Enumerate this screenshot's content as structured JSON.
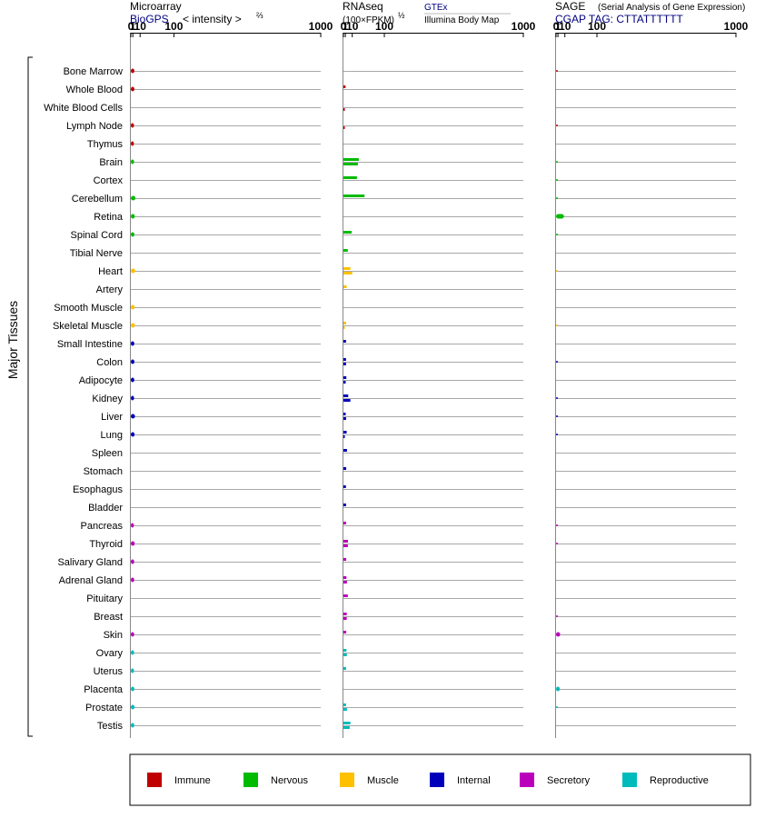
{
  "chart_data": {
    "type": "bar",
    "y_axis_title": "Major Tissues",
    "scale": {
      "ticks": [
        0,
        1,
        10,
        100,
        1000
      ],
      "tick_labels": [
        "0",
        "1",
        "10",
        "100",
        "1000"
      ],
      "exponent": "2/3",
      "range": [
        0,
        1000
      ]
    },
    "panels": [
      {
        "key": "microarray",
        "title": "Microarray",
        "source": "BioGPS",
        "measure": "< intensity >",
        "exponent_label": "⅔",
        "series": [
          {
            "key": "biogps",
            "name": "BioGPS"
          }
        ]
      },
      {
        "key": "rnaseq",
        "title": "RNAseq",
        "measure": "(100×FPKM)",
        "exponent_label": "½",
        "series": [
          {
            "key": "gtex",
            "name": "GTEx"
          },
          {
            "key": "illumina",
            "name": "Illumina Body Map"
          }
        ]
      },
      {
        "key": "sage",
        "title": "SAGE",
        "subtitle": "(Serial Analysis of Gene Expression)",
        "tag_label": "CGAP TAG: CTTATTTTTT",
        "series": [
          {
            "key": "sage",
            "name": "SAGE"
          }
        ]
      }
    ],
    "groups": [
      {
        "name": "Immune",
        "color": "#c00000"
      },
      {
        "name": "Nervous",
        "color": "#00bb00"
      },
      {
        "name": "Muscle",
        "color": "#ffc000"
      },
      {
        "name": "Internal",
        "color": "#0000bb"
      },
      {
        "name": "Secretory",
        "color": "#bb00bb"
      },
      {
        "name": "Reproductive",
        "color": "#00bbbb"
      }
    ],
    "tissues": [
      {
        "name": "Bone Marrow",
        "group": "Immune",
        "microarray": 2.4,
        "gtex": null,
        "illumina": null,
        "sage": 0.01
      },
      {
        "name": "Whole Blood",
        "group": "Immune",
        "microarray": 2.4,
        "gtex": 1.2,
        "illumina": null,
        "sage": null
      },
      {
        "name": "White Blood Cells",
        "group": "Immune",
        "microarray": null,
        "gtex": null,
        "illumina": 0.01,
        "sage": null
      },
      {
        "name": "Lymph Node",
        "group": "Immune",
        "microarray": 2.0,
        "gtex": null,
        "illumina": 0.01,
        "sage": 0.01
      },
      {
        "name": "Thymus",
        "group": "Immune",
        "microarray": 1.9,
        "gtex": null,
        "illumina": null,
        "sage": null
      },
      {
        "name": "Brain",
        "group": "Nervous",
        "microarray": 2.1,
        "gtex": 23,
        "illumina": 21,
        "sage": 0.01
      },
      {
        "name": "Cortex",
        "group": "Nervous",
        "microarray": null,
        "gtex": 19,
        "illumina": null,
        "sage": 0.01
      },
      {
        "name": "Cerebellum",
        "group": "Nervous",
        "microarray": 3.5,
        "gtex": 37,
        "illumina": null,
        "sage": 0.01
      },
      {
        "name": "Retina",
        "group": "Nervous",
        "microarray": 2.8,
        "gtex": null,
        "illumina": null,
        "sage": 8.5
      },
      {
        "name": "Spinal Cord",
        "group": "Nervous",
        "microarray": 2.4,
        "gtex": 9,
        "illumina": null,
        "sage": 0.01
      },
      {
        "name": "Tibial Nerve",
        "group": "Nervous",
        "microarray": null,
        "gtex": 3.5,
        "illumina": null,
        "sage": null
      },
      {
        "name": "Heart",
        "group": "Muscle",
        "microarray": 3.3,
        "gtex": 7,
        "illumina": 10,
        "sage": 0.01
      },
      {
        "name": "Artery",
        "group": "Muscle",
        "microarray": null,
        "gtex": 2.2,
        "illumina": null,
        "sage": null
      },
      {
        "name": "Smooth Muscle",
        "group": "Muscle",
        "microarray": 2.7,
        "gtex": null,
        "illumina": null,
        "sage": null
      },
      {
        "name": "Skeletal Muscle",
        "group": "Muscle",
        "microarray": 2.9,
        "gtex": 1.7,
        "illumina": 0.01,
        "sage": 0.01
      },
      {
        "name": "Small Intestine",
        "group": "Internal",
        "microarray": 2.3,
        "gtex": 1.6,
        "illumina": null,
        "sage": null
      },
      {
        "name": "Colon",
        "group": "Internal",
        "microarray": 2.4,
        "gtex": 1.6,
        "illumina": 1.6,
        "sage": 0.01
      },
      {
        "name": "Adipocyte",
        "group": "Internal",
        "microarray": 2.3,
        "gtex": 1.9,
        "illumina": 1.3,
        "sage": null
      },
      {
        "name": "Kidney",
        "group": "Internal",
        "microarray": 2.1,
        "gtex": 4,
        "illumina": 7,
        "sage": 0.01
      },
      {
        "name": "Liver",
        "group": "Internal",
        "microarray": 3.0,
        "gtex": 1.3,
        "illumina": 1.7,
        "sage": 0.01
      },
      {
        "name": "Lung",
        "group": "Internal",
        "microarray": 2.6,
        "gtex": 2.2,
        "illumina": 0.6,
        "sage": 0.01
      },
      {
        "name": "Spleen",
        "group": "Internal",
        "microarray": null,
        "gtex": 2.6,
        "illumina": null,
        "sage": null
      },
      {
        "name": "Stomach",
        "group": "Internal",
        "microarray": null,
        "gtex": 1.8,
        "illumina": null,
        "sage": null
      },
      {
        "name": "Esophagus",
        "group": "Internal",
        "microarray": null,
        "gtex": 1.5,
        "illumina": null,
        "sage": null
      },
      {
        "name": "Bladder",
        "group": "Internal",
        "microarray": null,
        "gtex": 1.7,
        "illumina": null,
        "sage": null
      },
      {
        "name": "Pancreas",
        "group": "Secretory",
        "microarray": 1.9,
        "gtex": 1.7,
        "illumina": null,
        "sage": 0.01
      },
      {
        "name": "Thyroid",
        "group": "Secretory",
        "microarray": 2.7,
        "gtex": 3.7,
        "illumina": 3.5,
        "sage": 0.01
      },
      {
        "name": "Salivary Gland",
        "group": "Secretory",
        "microarray": 2.2,
        "gtex": 1.8,
        "illumina": null,
        "sage": null
      },
      {
        "name": "Adrenal Gland",
        "group": "Secretory",
        "microarray": 2.2,
        "gtex": 2.0,
        "illumina": 2.5,
        "sage": null
      },
      {
        "name": "Pituitary",
        "group": "Secretory",
        "microarray": null,
        "gtex": 3.5,
        "illumina": null,
        "sage": null
      },
      {
        "name": "Breast",
        "group": "Secretory",
        "microarray": null,
        "gtex": 2.3,
        "illumina": 2.3,
        "sage": 0.01
      },
      {
        "name": "Skin",
        "group": "Secretory",
        "microarray": 2.2,
        "gtex": 1.8,
        "illumina": null,
        "sage": 3.2
      },
      {
        "name": "Ovary",
        "group": "Reproductive",
        "microarray": 2.1,
        "gtex": 2.0,
        "illumina": 2.4,
        "sage": null
      },
      {
        "name": "Uterus",
        "group": "Reproductive",
        "microarray": 2.0,
        "gtex": 1.7,
        "illumina": null,
        "sage": null
      },
      {
        "name": "Placenta",
        "group": "Reproductive",
        "microarray": 2.4,
        "gtex": null,
        "illumina": null,
        "sage": 2.8
      },
      {
        "name": "Prostate",
        "group": "Reproductive",
        "microarray": 2.6,
        "gtex": 1.6,
        "illumina": 2.5,
        "sage": 0.01
      },
      {
        "name": "Testis",
        "group": "Reproductive",
        "microarray": 2.3,
        "gtex": 7,
        "illumina": 6,
        "sage": null
      }
    ]
  }
}
